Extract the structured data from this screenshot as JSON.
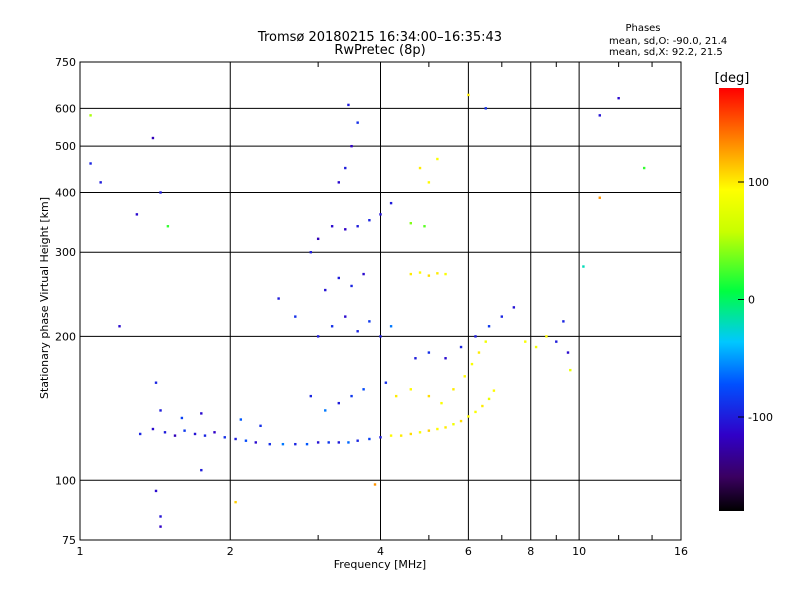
{
  "chart_data": {
    "type": "scatter",
    "title": "Tromsø 20180215 16:34:00–16:35:43",
    "subtitle": "RwPretec (8p)",
    "xlabel": "Frequency [MHz]",
    "ylabel": "Stationary phase Virtual Height [km]",
    "x_scale": "log",
    "y_scale": "log",
    "xlim": [
      1,
      16
    ],
    "ylim": [
      75,
      750
    ],
    "x_ticks": [
      1,
      2,
      4,
      6,
      8,
      10,
      16
    ],
    "x_tick_labels": [
      "1",
      "2",
      "4",
      "6",
      "8",
      "10",
      "16"
    ],
    "y_ticks": [
      75,
      100,
      200,
      300,
      400,
      500,
      600,
      750
    ],
    "y_tick_labels": [
      "75",
      "100",
      "200",
      "300",
      "400",
      "500",
      "600",
      "750"
    ],
    "grid": true,
    "stats": {
      "heading": "Phases",
      "line_o": "mean, sd,O: -90.0, 21.4",
      "line_x": "mean, sd,X:  92.2, 21.5"
    },
    "colorbar": {
      "label": "[deg]",
      "range": [
        -180,
        180
      ],
      "tick_values": [
        100,
        0,
        -100
      ],
      "tick_labels": [
        "100",
        "0",
        "-100"
      ]
    },
    "series": [
      {
        "points": [
          [
            1.32,
            125,
            -95
          ],
          [
            1.4,
            128,
            -110
          ],
          [
            1.48,
            126,
            -100
          ],
          [
            1.55,
            124,
            -120
          ],
          [
            1.62,
            127,
            -85
          ],
          [
            1.7,
            125,
            -105
          ],
          [
            1.78,
            124,
            -95
          ],
          [
            1.86,
            126,
            -115
          ],
          [
            1.95,
            123,
            -90
          ],
          [
            2.05,
            122,
            -100
          ],
          [
            2.15,
            121,
            -75
          ],
          [
            2.25,
            120,
            -110
          ],
          [
            2.4,
            119,
            -90
          ],
          [
            2.55,
            119,
            -60
          ],
          [
            2.7,
            119,
            -95
          ],
          [
            2.85,
            119,
            -70
          ],
          [
            3.0,
            120,
            -105
          ],
          [
            3.15,
            120,
            -85
          ],
          [
            3.3,
            120,
            -100
          ],
          [
            3.45,
            120,
            -65
          ],
          [
            3.6,
            121,
            -95
          ],
          [
            3.8,
            122,
            -80
          ],
          [
            4.0,
            123,
            -100
          ],
          [
            4.2,
            124,
            95
          ],
          [
            4.4,
            124,
            100
          ],
          [
            4.6,
            125,
            105
          ],
          [
            4.8,
            126,
            90
          ],
          [
            5.0,
            127,
            110
          ],
          [
            5.2,
            128,
            95
          ],
          [
            5.4,
            129,
            100
          ],
          [
            5.6,
            131,
            85
          ],
          [
            5.8,
            133,
            105
          ],
          [
            6.0,
            136,
            95
          ],
          [
            6.2,
            139,
            90
          ],
          [
            6.4,
            143,
            100
          ],
          [
            6.6,
            148,
            80
          ],
          [
            6.75,
            154,
            95
          ],
          [
            1.45,
            140,
            -100
          ],
          [
            1.6,
            135,
            -80
          ],
          [
            1.75,
            138,
            -110
          ],
          [
            2.1,
            134,
            -70
          ],
          [
            2.3,
            130,
            -90
          ],
          [
            2.9,
            150,
            -95
          ],
          [
            3.1,
            140,
            -60
          ],
          [
            3.3,
            145,
            -100
          ],
          [
            3.5,
            150,
            -85
          ],
          [
            3.7,
            155,
            -75
          ],
          [
            4.1,
            160,
            -90
          ],
          [
            4.3,
            150,
            100
          ],
          [
            4.6,
            155,
            95
          ],
          [
            5.0,
            150,
            105
          ],
          [
            5.3,
            145,
            90
          ],
          [
            5.6,
            155,
            100
          ],
          [
            5.9,
            165,
            95
          ],
          [
            6.1,
            175,
            90
          ],
          [
            6.3,
            185,
            100
          ],
          [
            6.5,
            195,
            85
          ],
          [
            4.7,
            180,
            -100
          ],
          [
            5.0,
            185,
            -90
          ],
          [
            5.4,
            180,
            -110
          ],
          [
            5.8,
            190,
            -95
          ],
          [
            6.2,
            200,
            -100
          ],
          [
            6.6,
            210,
            -85
          ],
          [
            7.0,
            220,
            -95
          ],
          [
            7.4,
            230,
            -105
          ],
          [
            7.8,
            195,
            90
          ],
          [
            8.2,
            190,
            85
          ],
          [
            8.6,
            200,
            95
          ],
          [
            9.0,
            195,
            -100
          ],
          [
            9.3,
            215,
            -95
          ],
          [
            9.5,
            185,
            -110
          ],
          [
            3.0,
            200,
            -100
          ],
          [
            3.2,
            210,
            -90
          ],
          [
            3.4,
            220,
            -110
          ],
          [
            3.6,
            205,
            -95
          ],
          [
            3.8,
            215,
            -85
          ],
          [
            4.0,
            200,
            -100
          ],
          [
            4.2,
            210,
            -60
          ],
          [
            3.1,
            250,
            -105
          ],
          [
            3.3,
            265,
            -100
          ],
          [
            3.5,
            255,
            -95
          ],
          [
            3.7,
            270,
            -110
          ],
          [
            2.9,
            300,
            -100
          ],
          [
            3.0,
            320,
            -120
          ],
          [
            3.2,
            340,
            -110
          ],
          [
            3.4,
            335,
            -115
          ],
          [
            3.6,
            340,
            -100
          ],
          [
            3.8,
            350,
            -95
          ],
          [
            4.0,
            360,
            -105
          ],
          [
            4.2,
            380,
            -100
          ],
          [
            3.3,
            420,
            -110
          ],
          [
            3.4,
            450,
            -100
          ],
          [
            3.5,
            500,
            -115
          ],
          [
            3.6,
            560,
            -90
          ],
          [
            3.45,
            610,
            -100
          ],
          [
            4.6,
            270,
            100
          ],
          [
            4.8,
            272,
            95
          ],
          [
            5.0,
            268,
            105
          ],
          [
            5.2,
            271,
            100
          ],
          [
            5.4,
            270,
            90
          ],
          [
            4.6,
            345,
            40
          ],
          [
            4.9,
            340,
            30
          ],
          [
            5.0,
            420,
            95
          ],
          [
            4.8,
            450,
            100
          ],
          [
            5.2,
            470,
            90
          ],
          [
            1.3,
            360,
            -110
          ],
          [
            1.4,
            520,
            -120
          ],
          [
            1.45,
            400,
            -100
          ],
          [
            1.42,
            160,
            -95
          ],
          [
            1.42,
            95,
            -110
          ],
          [
            1.05,
            460,
            -95
          ],
          [
            1.1,
            420,
            -100
          ],
          [
            1.05,
            580,
            50
          ],
          [
            1.2,
            210,
            -110
          ],
          [
            1.5,
            340,
            20
          ],
          [
            2.5,
            240,
            -100
          ],
          [
            2.7,
            220,
            -90
          ],
          [
            6.0,
            640,
            100
          ],
          [
            6.5,
            600,
            -90
          ],
          [
            12.0,
            630,
            -110
          ],
          [
            11.0,
            580,
            -105
          ],
          [
            13.5,
            450,
            20
          ],
          [
            11.0,
            390,
            130
          ],
          [
            10.2,
            280,
            -20
          ],
          [
            9.6,
            170,
            80
          ],
          [
            2.05,
            90,
            110
          ],
          [
            3.9,
            98,
            130
          ],
          [
            1.75,
            105,
            -100
          ],
          [
            1.45,
            80,
            -115
          ],
          [
            1.45,
            84,
            -105
          ]
        ]
      }
    ]
  }
}
